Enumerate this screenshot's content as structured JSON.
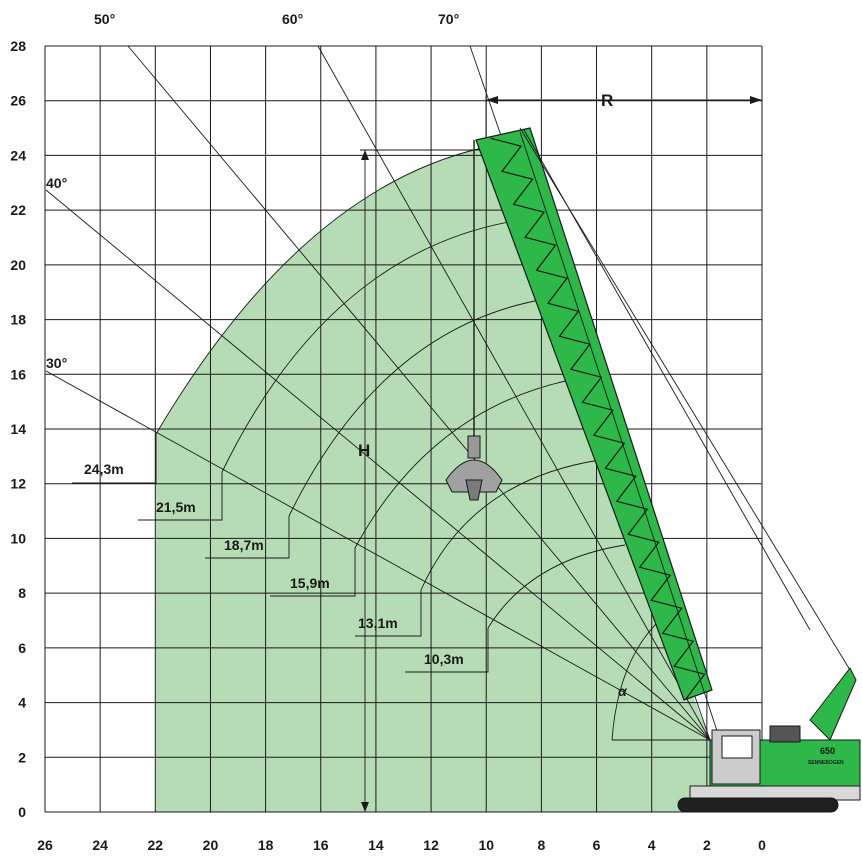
{
  "axes": {
    "x_ticks": [
      "26",
      "24",
      "22",
      "20",
      "18",
      "16",
      "14",
      "12",
      "10",
      "8",
      "6",
      "4",
      "2",
      "0"
    ],
    "y_ticks": [
      "0",
      "2",
      "4",
      "6",
      "8",
      "10",
      "12",
      "14",
      "16",
      "18",
      "20",
      "22",
      "24",
      "26",
      "28"
    ]
  },
  "boom_angles": [
    "30°",
    "40°",
    "50°",
    "60°",
    "70°"
  ],
  "boom_lengths": [
    {
      "label": "24,3m",
      "length": 24.3
    },
    {
      "label": "21,5m",
      "length": 21.5
    },
    {
      "label": "18,7m",
      "length": 18.7
    },
    {
      "label": "15,9m",
      "length": 15.9
    },
    {
      "label": "13,1m",
      "length": 13.1
    },
    {
      "label": "10,3m",
      "length": 10.3
    }
  ],
  "dimension_labels": {
    "radius": "R",
    "height": "H",
    "angle": "α"
  },
  "machine": {
    "model_badge": "650",
    "brand_badge": "SENNEBOGEN"
  },
  "colors": {
    "working_area": "#b5dcb5",
    "machine_green": "#2fb84a",
    "lines": "#1a1a1a"
  }
}
